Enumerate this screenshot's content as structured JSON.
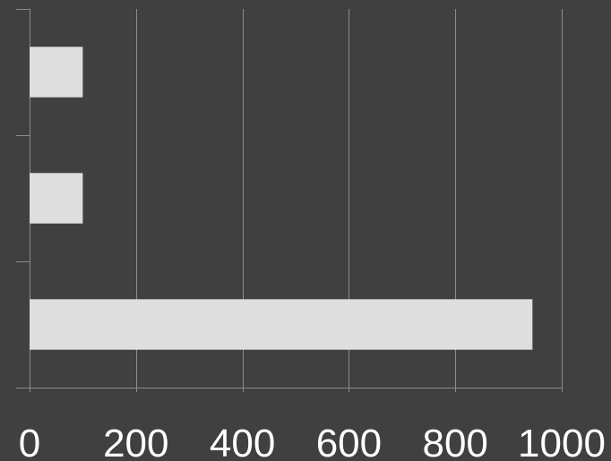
{
  "chart_data": {
    "type": "bar",
    "orientation": "horizontal",
    "categories": [
      "",
      "",
      ""
    ],
    "values": [
      100,
      100,
      945
    ],
    "xlim": [
      0,
      1000
    ],
    "xticks": [
      "0",
      "200",
      "400",
      "600",
      "800",
      "1000"
    ],
    "grid": true,
    "title": "",
    "xlabel": "",
    "ylabel": ""
  },
  "colors": {
    "background": "#404040",
    "bar": "#dedede",
    "gridline": "#8c8c8c",
    "text": "#ffffff"
  }
}
